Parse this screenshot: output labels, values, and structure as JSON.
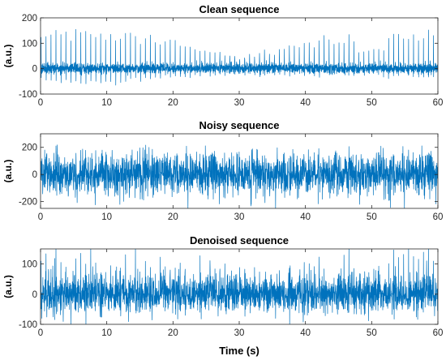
{
  "chart_data": [
    {
      "type": "line",
      "title": "Clean sequence",
      "ylabel": "(a.u.)",
      "xlabel": "",
      "xlim": [
        0,
        60
      ],
      "ylim": [
        -100,
        200
      ],
      "xticks": [
        0,
        10,
        20,
        30,
        40,
        50,
        60
      ],
      "xtick_labels": [
        "0",
        "10",
        "20",
        "30",
        "40",
        "50",
        "60"
      ],
      "yticks": [
        -100,
        0,
        100,
        200
      ],
      "ytick_labels": [
        "-100",
        "0",
        "100",
        "200"
      ],
      "series": [
        {
          "color": "#0072BD",
          "description_values": {
            "beat_period_s": 0.75,
            "peak_range": [
              100,
              160
            ],
            "trough_range": [
              -60,
              -30
            ],
            "baseline_noise_amplitude": 20
          }
        }
      ],
      "grid": false
    },
    {
      "type": "line",
      "title": "Noisy sequence",
      "ylabel": "(a.u.)",
      "xlabel": "",
      "xlim": [
        0,
        60
      ],
      "ylim": [
        -250,
        300
      ],
      "xticks": [
        0,
        10,
        20,
        30,
        40,
        50,
        60
      ],
      "xtick_labels": [
        "0",
        "10",
        "20",
        "30",
        "40",
        "50",
        "60"
      ],
      "yticks": [
        -200,
        0,
        200
      ],
      "ytick_labels": [
        "-200",
        "0",
        "200"
      ],
      "series": [
        {
          "color": "#0072BD",
          "description_values": {
            "noise_range": [
              -240,
              300
            ],
            "typical_envelope": [
              -200,
              200
            ]
          }
        }
      ],
      "grid": false
    },
    {
      "type": "line",
      "title": "Denoised sequence",
      "ylabel": "(a.u.)",
      "xlabel": "Time (s)",
      "xlim": [
        0,
        60
      ],
      "ylim": [
        -100,
        150
      ],
      "xticks": [
        0,
        10,
        20,
        30,
        40,
        50,
        60
      ],
      "xtick_labels": [
        "0",
        "10",
        "20",
        "30",
        "40",
        "50",
        "60"
      ],
      "yticks": [
        -100,
        0,
        100
      ],
      "ytick_labels": [
        "-100",
        "0",
        "100"
      ],
      "series": [
        {
          "color": "#0072BD",
          "description_values": {
            "beat_period_s": 0.75,
            "peak_range": [
              80,
              140
            ],
            "residual_noise_amplitude": 45
          }
        }
      ],
      "grid": false
    }
  ]
}
